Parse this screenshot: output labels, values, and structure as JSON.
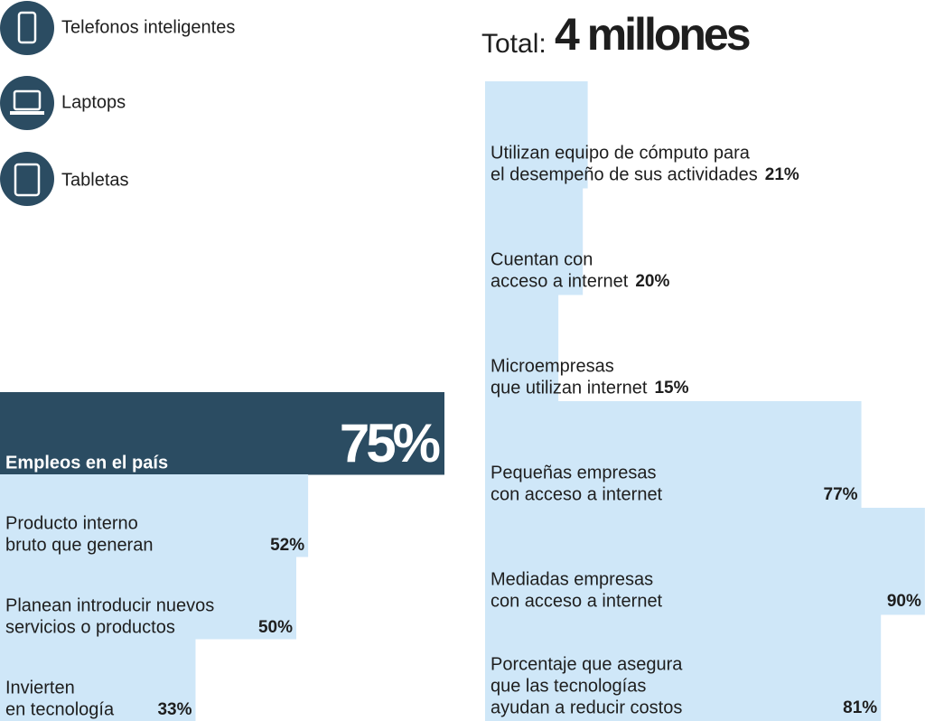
{
  "devices": [
    "Telefonos inteligentes",
    "Laptops",
    "Tabletas"
  ],
  "total": {
    "label": "Total:",
    "value": "4 millones"
  },
  "chart_data": [
    {
      "type": "bar",
      "horizontal": true,
      "xlim": [
        0,
        100
      ],
      "categories": [
        [
          "Empleos en el país"
        ],
        [
          "Producto interno",
          "bruto que generan"
        ],
        [
          "Planean introducir nuevos",
          "servicios o productos"
        ],
        [
          "Invierten",
          "en tecnología"
        ]
      ],
      "values": [
        75,
        52,
        50,
        33
      ],
      "value_labels": [
        "75%",
        "52%",
        "50%",
        "33%"
      ],
      "colors": [
        "#2b4c62",
        "#cfe7f8",
        "#cfe7f8",
        "#cfe7f8"
      ]
    },
    {
      "type": "bar",
      "horizontal": true,
      "xlim": [
        0,
        100
      ],
      "categories": [
        [
          "Utilizan equipo de cómputo para",
          "el desempeño de sus actividades"
        ],
        [
          "Cuentan con",
          "acceso a internet"
        ],
        [
          "Microempresas",
          "que utilizan internet"
        ],
        [
          "Pequeñas empresas",
          "con acceso a internet"
        ],
        [
          "Mediadas empresas",
          "con acceso a internet"
        ],
        [
          "Porcentaje que asegura",
          "que las tecnologías",
          "ayudan a reducir costos"
        ]
      ],
      "values": [
        21,
        20,
        15,
        77,
        90,
        81
      ],
      "value_labels": [
        "21%",
        "20%",
        "15%",
        "77%",
        "90%",
        "81%"
      ],
      "colors": [
        "#cfe7f8",
        "#cfe7f8",
        "#cfe7f8",
        "#cfe7f8",
        "#cfe7f8",
        "#cfe7f8"
      ]
    }
  ]
}
